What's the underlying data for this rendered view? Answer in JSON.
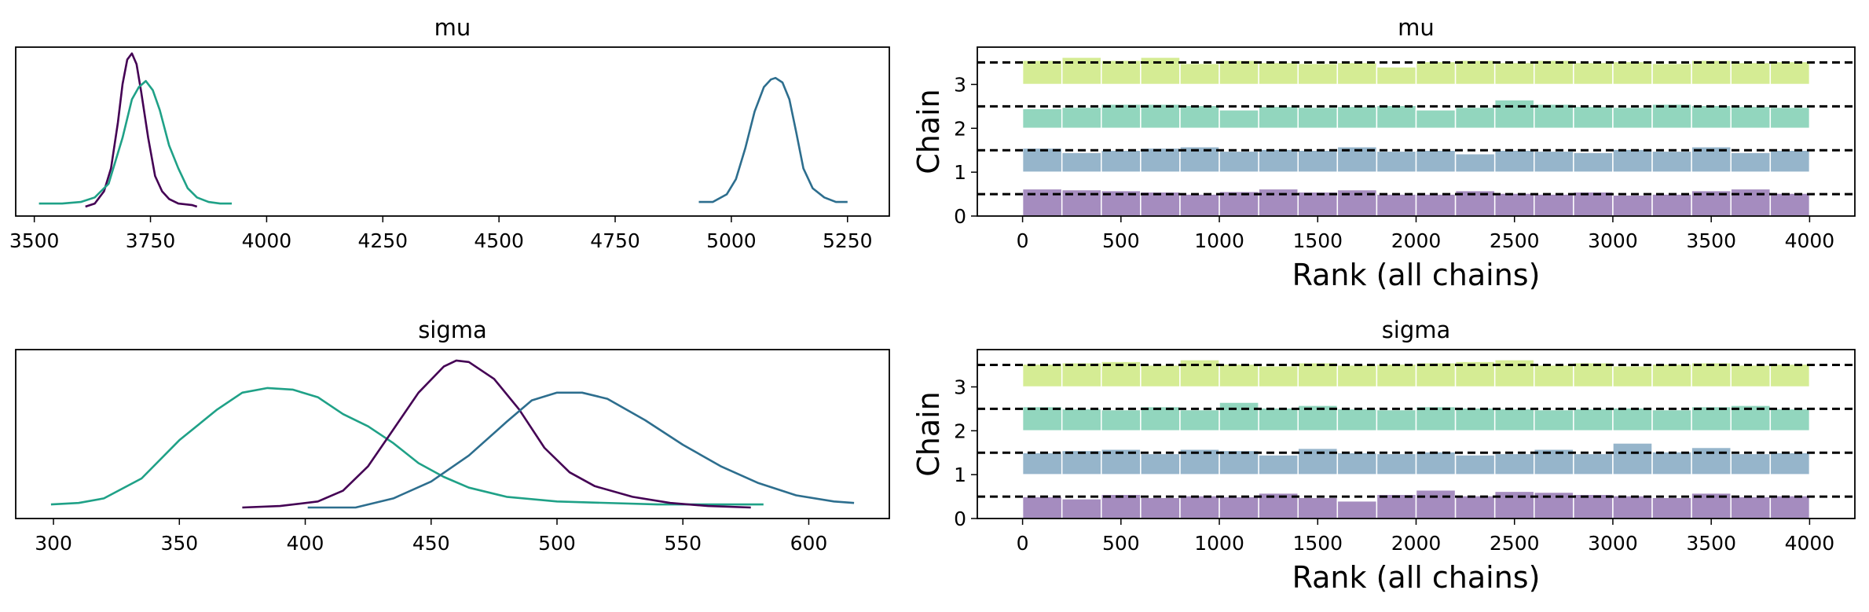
{
  "chart_data": [
    {
      "type": "line",
      "panel": "kde",
      "title": "mu",
      "xlim": [
        3460,
        5340
      ],
      "xticks": [
        3500,
        3750,
        4000,
        4250,
        4500,
        4750,
        5000,
        5250
      ],
      "series": [
        {
          "color": "#440154",
          "points": [
            [
              3610,
              0.0
            ],
            [
              3630,
              0.02
            ],
            [
              3650,
              0.1
            ],
            [
              3665,
              0.25
            ],
            [
              3680,
              0.55
            ],
            [
              3690,
              0.8
            ],
            [
              3700,
              0.96
            ],
            [
              3710,
              1.0
            ],
            [
              3720,
              0.93
            ],
            [
              3730,
              0.75
            ],
            [
              3745,
              0.45
            ],
            [
              3760,
              0.2
            ],
            [
              3775,
              0.1
            ],
            [
              3790,
              0.05
            ],
            [
              3810,
              0.02
            ],
            [
              3840,
              0.01
            ],
            [
              3850,
              0.0
            ]
          ]
        },
        {
          "color": "#1fa187",
          "points": [
            [
              3510,
              0.02
            ],
            [
              3560,
              0.02
            ],
            [
              3600,
              0.03
            ],
            [
              3630,
              0.06
            ],
            [
              3660,
              0.15
            ],
            [
              3690,
              0.45
            ],
            [
              3710,
              0.7
            ],
            [
              3725,
              0.78
            ],
            [
              3740,
              0.82
            ],
            [
              3755,
              0.76
            ],
            [
              3770,
              0.63
            ],
            [
              3790,
              0.4
            ],
            [
              3810,
              0.25
            ],
            [
              3830,
              0.12
            ],
            [
              3850,
              0.06
            ],
            [
              3875,
              0.03
            ],
            [
              3900,
              0.02
            ],
            [
              3925,
              0.02
            ]
          ]
        },
        {
          "color": "#2d6e8e",
          "points": [
            [
              4930,
              0.03
            ],
            [
              4960,
              0.03
            ],
            [
              4990,
              0.08
            ],
            [
              5010,
              0.18
            ],
            [
              5030,
              0.38
            ],
            [
              5050,
              0.62
            ],
            [
              5070,
              0.78
            ],
            [
              5085,
              0.83
            ],
            [
              5095,
              0.84
            ],
            [
              5110,
              0.81
            ],
            [
              5125,
              0.7
            ],
            [
              5140,
              0.48
            ],
            [
              5155,
              0.25
            ],
            [
              5175,
              0.12
            ],
            [
              5200,
              0.06
            ],
            [
              5225,
              0.03
            ],
            [
              5250,
              0.03
            ]
          ]
        }
      ]
    },
    {
      "type": "bar",
      "panel": "rank",
      "title": "mu",
      "xlabel": "Rank (all chains)",
      "ylabel": "Chain",
      "xlim": [
        -230,
        4230
      ],
      "ylim": [
        0,
        3.85
      ],
      "xticks": [
        0,
        500,
        1000,
        1500,
        2000,
        2500,
        3000,
        3500,
        4000
      ],
      "yticks": [
        0,
        1,
        2,
        3
      ],
      "bin_width": 200,
      "series": [
        {
          "name": "0",
          "color": "#a58cbf",
          "offset": 0,
          "values": [
            0.62,
            0.6,
            0.58,
            0.55,
            0.5,
            0.56,
            0.62,
            0.55,
            0.6,
            0.5,
            0.5,
            0.58,
            0.52,
            0.5,
            0.55,
            0.48,
            0.5,
            0.58,
            0.62,
            0.52
          ]
        },
        {
          "name": "1",
          "color": "#96b5cb",
          "offset": 1,
          "values": [
            0.55,
            0.45,
            0.5,
            0.55,
            0.58,
            0.48,
            0.52,
            0.5,
            0.58,
            0.48,
            0.5,
            0.42,
            0.5,
            0.48,
            0.45,
            0.52,
            0.48,
            0.58,
            0.45,
            0.5
          ]
        },
        {
          "name": "2",
          "color": "#92d6be",
          "offset": 2,
          "values": [
            0.45,
            0.48,
            0.55,
            0.55,
            0.52,
            0.42,
            0.5,
            0.48,
            0.5,
            0.52,
            0.42,
            0.48,
            0.65,
            0.55,
            0.5,
            0.48,
            0.55,
            0.52,
            0.5,
            0.48
          ]
        },
        {
          "name": "3",
          "color": "#d5ec94",
          "offset": 3,
          "values": [
            0.55,
            0.62,
            0.55,
            0.62,
            0.48,
            0.55,
            0.5,
            0.48,
            0.5,
            0.4,
            0.52,
            0.55,
            0.5,
            0.55,
            0.5,
            0.52,
            0.48,
            0.55,
            0.5,
            0.52
          ]
        }
      ],
      "reference_lines": [
        0.5,
        1.5,
        2.5,
        3.5
      ]
    },
    {
      "type": "line",
      "panel": "kde",
      "title": "sigma",
      "xlim": [
        285,
        632
      ],
      "xticks": [
        300,
        350,
        400,
        450,
        500,
        550,
        600
      ],
      "series": [
        {
          "color": "#1fa187",
          "points": [
            [
              299,
              0.03
            ],
            [
              310,
              0.04
            ],
            [
              320,
              0.07
            ],
            [
              335,
              0.2
            ],
            [
              350,
              0.45
            ],
            [
              365,
              0.65
            ],
            [
              375,
              0.76
            ],
            [
              385,
              0.79
            ],
            [
              395,
              0.78
            ],
            [
              405,
              0.73
            ],
            [
              415,
              0.62
            ],
            [
              425,
              0.54
            ],
            [
              435,
              0.43
            ],
            [
              445,
              0.3
            ],
            [
              455,
              0.21
            ],
            [
              465,
              0.14
            ],
            [
              480,
              0.08
            ],
            [
              500,
              0.05
            ],
            [
              540,
              0.03
            ],
            [
              582,
              0.03
            ]
          ]
        },
        {
          "color": "#440154",
          "points": [
            [
              375,
              0.01
            ],
            [
              390,
              0.02
            ],
            [
              405,
              0.05
            ],
            [
              415,
              0.12
            ],
            [
              425,
              0.28
            ],
            [
              435,
              0.52
            ],
            [
              445,
              0.76
            ],
            [
              455,
              0.93
            ],
            [
              460,
              0.97
            ],
            [
              465,
              0.96
            ],
            [
              475,
              0.85
            ],
            [
              485,
              0.65
            ],
            [
              495,
              0.4
            ],
            [
              505,
              0.24
            ],
            [
              515,
              0.15
            ],
            [
              530,
              0.08
            ],
            [
              545,
              0.04
            ],
            [
              560,
              0.02
            ],
            [
              577,
              0.01
            ]
          ]
        },
        {
          "color": "#2d6e8e",
          "points": [
            [
              401,
              0.01
            ],
            [
              420,
              0.01
            ],
            [
              435,
              0.07
            ],
            [
              450,
              0.18
            ],
            [
              465,
              0.35
            ],
            [
              480,
              0.57
            ],
            [
              490,
              0.71
            ],
            [
              500,
              0.76
            ],
            [
              510,
              0.76
            ],
            [
              520,
              0.72
            ],
            [
              535,
              0.58
            ],
            [
              550,
              0.42
            ],
            [
              565,
              0.28
            ],
            [
              580,
              0.17
            ],
            [
              595,
              0.09
            ],
            [
              610,
              0.05
            ],
            [
              618,
              0.04
            ]
          ]
        }
      ]
    },
    {
      "type": "bar",
      "panel": "rank",
      "title": "sigma",
      "xlabel": "Rank (all chains)",
      "ylabel": "Chain",
      "xlim": [
        -230,
        4230
      ],
      "ylim": [
        0,
        3.85
      ],
      "xticks": [
        0,
        500,
        1000,
        1500,
        2000,
        2500,
        3000,
        3500,
        4000
      ],
      "yticks": [
        0,
        1,
        2,
        3
      ],
      "bin_width": 200,
      "series": [
        {
          "name": "0",
          "color": "#a58cbf",
          "offset": 0,
          "values": [
            0.5,
            0.45,
            0.55,
            0.48,
            0.52,
            0.5,
            0.58,
            0.48,
            0.4,
            0.55,
            0.65,
            0.52,
            0.62,
            0.6,
            0.55,
            0.52,
            0.48,
            0.58,
            0.5,
            0.52
          ]
        },
        {
          "name": "1",
          "color": "#96b5cb",
          "offset": 1,
          "values": [
            0.5,
            0.55,
            0.58,
            0.48,
            0.58,
            0.55,
            0.45,
            0.6,
            0.5,
            0.48,
            0.52,
            0.45,
            0.48,
            0.58,
            0.48,
            0.72,
            0.52,
            0.62,
            0.48,
            0.5
          ]
        },
        {
          "name": "2",
          "color": "#92d6be",
          "offset": 2,
          "values": [
            0.55,
            0.5,
            0.48,
            0.55,
            0.48,
            0.65,
            0.52,
            0.58,
            0.5,
            0.48,
            0.55,
            0.52,
            0.5,
            0.48,
            0.5,
            0.52,
            0.48,
            0.55,
            0.58,
            0.5
          ]
        },
        {
          "name": "3",
          "color": "#d5ec94",
          "offset": 3,
          "values": [
            0.52,
            0.55,
            0.58,
            0.5,
            0.62,
            0.52,
            0.48,
            0.55,
            0.5,
            0.52,
            0.55,
            0.58,
            0.62,
            0.5,
            0.55,
            0.48,
            0.52,
            0.55,
            0.5,
            0.52
          ]
        }
      ],
      "reference_lines": [
        0.5,
        1.5,
        2.5,
        3.5
      ]
    }
  ]
}
